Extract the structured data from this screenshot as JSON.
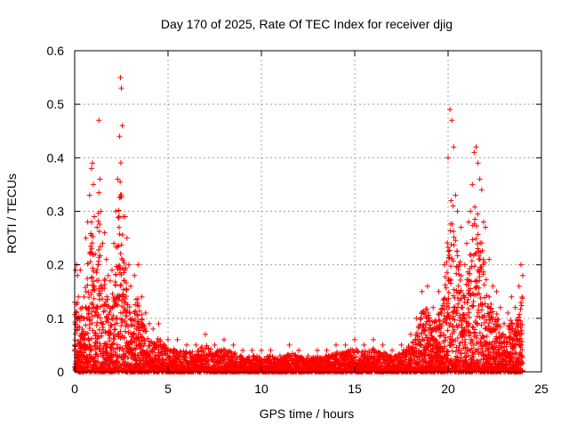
{
  "chart_data": {
    "type": "scatter",
    "title": "Day 170 of 2025, Rate Of TEC Index for receiver djig",
    "xlabel": "GPS time / hours",
    "ylabel": "ROTI / TECUs",
    "xlim": [
      0,
      25
    ],
    "ylim": [
      0,
      0.6
    ],
    "x_ticks": [
      "0",
      "5",
      "10",
      "15",
      "20",
      "25"
    ],
    "y_ticks": [
      "0",
      "0.1",
      "0.2",
      "0.3",
      "0.4",
      "0.5",
      "0.6"
    ],
    "grid": true,
    "marker": "+",
    "color": "#ff0000",
    "series": [
      {
        "x": [
          0.0,
          0.05,
          0.1,
          0.15,
          0.2,
          0.3,
          0.4,
          0.5,
          0.6,
          0.7,
          0.8,
          0.9,
          0.95,
          1.0,
          1.05,
          1.1,
          1.2,
          1.3,
          1.35,
          1.4,
          1.5,
          1.6,
          1.7,
          1.8,
          1.9,
          2.0,
          2.1,
          2.2,
          2.3,
          2.4,
          2.45,
          2.5,
          2.55,
          2.6,
          2.7,
          2.8,
          2.9,
          3.0,
          3.2,
          3.4,
          3.6,
          3.8,
          4.0,
          4.2,
          4.5,
          5.0,
          5.5,
          6.0,
          6.5,
          7.0,
          7.5,
          8.0,
          8.5,
          9.0,
          9.5,
          10.0,
          10.5,
          11.0,
          11.5,
          12.0,
          12.5,
          13.0,
          13.5,
          14.0,
          14.5,
          15.0,
          15.5,
          16.0,
          16.5,
          17.0,
          17.5,
          18.0,
          18.3,
          18.6,
          18.9,
          19.2,
          19.5,
          19.8,
          20.0,
          20.1,
          20.2,
          20.3,
          20.4,
          20.5,
          20.7,
          20.9,
          21.0,
          21.1,
          21.2,
          21.3,
          21.4,
          21.5,
          21.6,
          21.7,
          21.8,
          21.9,
          22.0,
          22.2,
          22.4,
          22.6,
          22.8,
          23.0,
          23.2,
          23.4,
          23.6,
          23.8,
          23.9,
          24.0
        ],
        "y": [
          0.13,
          0.19,
          0.2,
          0.18,
          0.14,
          0.19,
          0.12,
          0.14,
          0.25,
          0.28,
          0.33,
          0.38,
          0.39,
          0.35,
          0.29,
          0.22,
          0.27,
          0.47,
          0.36,
          0.3,
          0.24,
          0.26,
          0.21,
          0.18,
          0.17,
          0.19,
          0.24,
          0.3,
          0.36,
          0.44,
          0.55,
          0.53,
          0.46,
          0.29,
          0.29,
          0.25,
          0.2,
          0.16,
          0.18,
          0.2,
          0.14,
          0.11,
          0.09,
          0.08,
          0.09,
          0.06,
          0.06,
          0.05,
          0.05,
          0.07,
          0.05,
          0.06,
          0.05,
          0.04,
          0.04,
          0.04,
          0.04,
          0.03,
          0.05,
          0.04,
          0.03,
          0.04,
          0.04,
          0.05,
          0.05,
          0.06,
          0.05,
          0.06,
          0.05,
          0.04,
          0.05,
          0.07,
          0.1,
          0.15,
          0.16,
          0.12,
          0.15,
          0.2,
          0.4,
          0.49,
          0.47,
          0.42,
          0.33,
          0.3,
          0.27,
          0.2,
          0.24,
          0.28,
          0.3,
          0.35,
          0.41,
          0.42,
          0.39,
          0.36,
          0.34,
          0.28,
          0.27,
          0.21,
          0.16,
          0.15,
          0.12,
          0.09,
          0.11,
          0.14,
          0.12,
          0.16,
          0.2,
          0.18
        ]
      }
    ]
  }
}
